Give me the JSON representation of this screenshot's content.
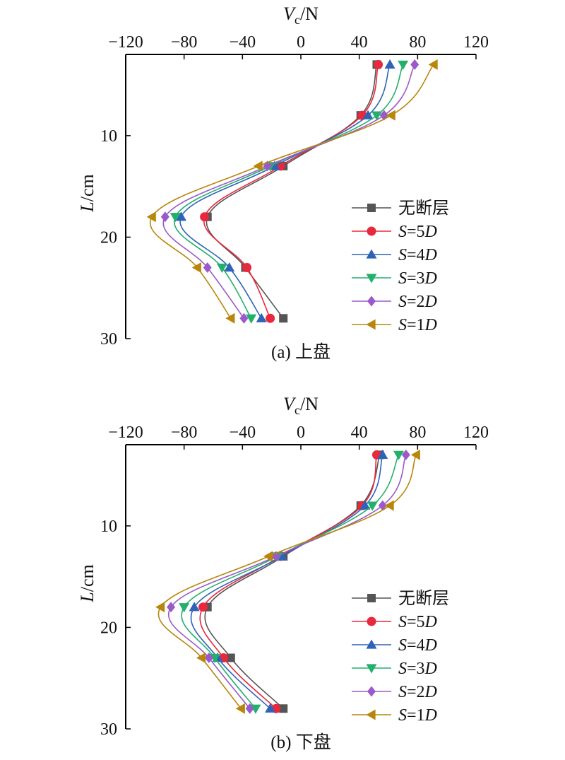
{
  "chart_data": [
    {
      "type": "line",
      "caption": "(a) 上盘",
      "xlabel": {
        "main": "V",
        "sub": "c",
        "unit": "/N"
      },
      "ylabel": {
        "main": "L",
        "unit": "/cm"
      },
      "xlim": [
        -120,
        120
      ],
      "ylim": [
        30,
        2
      ],
      "xticks": [
        -120,
        -80,
        -40,
        0,
        40,
        80,
        120
      ],
      "yticks": [
        10,
        20,
        30
      ],
      "legend_position": "center-right",
      "series": [
        {
          "name": "无断层",
          "color": "#555555",
          "marker": "square",
          "points": [
            [
              52,
              3
            ],
            [
              41,
              8
            ],
            [
              -12,
              13
            ],
            [
              -64,
              18
            ],
            [
              -38,
              23
            ],
            [
              -12,
              28
            ]
          ]
        },
        {
          "name_italic": "S",
          "name_rest": "=5",
          "name_suffix": "D",
          "color": "#e8283c",
          "marker": "circle",
          "points": [
            [
              53,
              3
            ],
            [
              42,
              8
            ],
            [
              -14,
              13
            ],
            [
              -66,
              18
            ],
            [
              -37,
              23
            ],
            [
              -21,
              28
            ]
          ]
        },
        {
          "name_italic": "S",
          "name_rest": "=4",
          "name_suffix": "D",
          "color": "#2e63b8",
          "marker": "triangle-up",
          "points": [
            [
              61,
              3
            ],
            [
              46,
              8
            ],
            [
              -18,
              13
            ],
            [
              -82,
              18
            ],
            [
              -49,
              23
            ],
            [
              -27,
              28
            ]
          ]
        },
        {
          "name_italic": "S",
          "name_rest": "=3",
          "name_suffix": "D",
          "color": "#23b06b",
          "marker": "triangle-down",
          "points": [
            [
              70,
              3
            ],
            [
              52,
              8
            ],
            [
              -21,
              13
            ],
            [
              -86,
              18
            ],
            [
              -54,
              23
            ],
            [
              -34,
              28
            ]
          ]
        },
        {
          "name_italic": "S",
          "name_rest": "=2",
          "name_suffix": "D",
          "color": "#9b59c9",
          "marker": "diamond",
          "points": [
            [
              78,
              3
            ],
            [
              57,
              8
            ],
            [
              -23,
              13
            ],
            [
              -93,
              18
            ],
            [
              -64,
              23
            ],
            [
              -39,
              28
            ]
          ]
        },
        {
          "name_italic": "S",
          "name_rest": "=1",
          "name_suffix": "D",
          "color": "#b8860b",
          "marker": "triangle-left",
          "points": [
            [
              91,
              3
            ],
            [
              62,
              8
            ],
            [
              -29,
              13
            ],
            [
              -102,
              18
            ],
            [
              -71,
              23
            ],
            [
              -48,
              28
            ]
          ]
        }
      ]
    },
    {
      "type": "line",
      "caption": "(b) 下盘",
      "xlabel": {
        "main": "V",
        "sub": "c",
        "unit": "/N"
      },
      "ylabel": {
        "main": "L",
        "unit": "/cm"
      },
      "xlim": [
        -120,
        120
      ],
      "ylim": [
        30,
        2
      ],
      "xticks": [
        -120,
        -80,
        -40,
        0,
        40,
        80,
        120
      ],
      "yticks": [
        10,
        20,
        30
      ],
      "legend_position": "center-right",
      "series": [
        {
          "name": "无断层",
          "color": "#555555",
          "marker": "square",
          "points": [
            [
              54,
              3
            ],
            [
              41,
              8
            ],
            [
              -12,
              13
            ],
            [
              -64,
              18
            ],
            [
              -48,
              23
            ],
            [
              -12,
              28
            ]
          ]
        },
        {
          "name_italic": "S",
          "name_rest": "=5",
          "name_suffix": "D",
          "color": "#e8283c",
          "marker": "circle",
          "points": [
            [
              52,
              3
            ],
            [
              42,
              8
            ],
            [
              -14,
              13
            ],
            [
              -67,
              18
            ],
            [
              -53,
              23
            ],
            [
              -17,
              28
            ]
          ]
        },
        {
          "name_italic": "S",
          "name_rest": "=4",
          "name_suffix": "D",
          "color": "#2e63b8",
          "marker": "triangle-up",
          "points": [
            [
              56,
              3
            ],
            [
              44,
              8
            ],
            [
              -13,
              13
            ],
            [
              -73,
              18
            ],
            [
              -57,
              23
            ],
            [
              -21,
              28
            ]
          ]
        },
        {
          "name_italic": "S",
          "name_rest": "=3",
          "name_suffix": "D",
          "color": "#23b06b",
          "marker": "triangle-down",
          "points": [
            [
              67,
              3
            ],
            [
              49,
              8
            ],
            [
              -16,
              13
            ],
            [
              -80,
              18
            ],
            [
              -59,
              23
            ],
            [
              -31,
              28
            ]
          ]
        },
        {
          "name_italic": "S",
          "name_rest": "=2",
          "name_suffix": "D",
          "color": "#9b59c9",
          "marker": "diamond",
          "points": [
            [
              72,
              3
            ],
            [
              56,
              8
            ],
            [
              -17,
              13
            ],
            [
              -89,
              18
            ],
            [
              -63,
              23
            ],
            [
              -35,
              28
            ]
          ]
        },
        {
          "name_italic": "S",
          "name_rest": "=1",
          "name_suffix": "D",
          "color": "#b8860b",
          "marker": "triangle-left",
          "points": [
            [
              79,
              3
            ],
            [
              61,
              8
            ],
            [
              -22,
              13
            ],
            [
              -96,
              18
            ],
            [
              -68,
              23
            ],
            [
              -41,
              28
            ]
          ]
        }
      ]
    }
  ]
}
